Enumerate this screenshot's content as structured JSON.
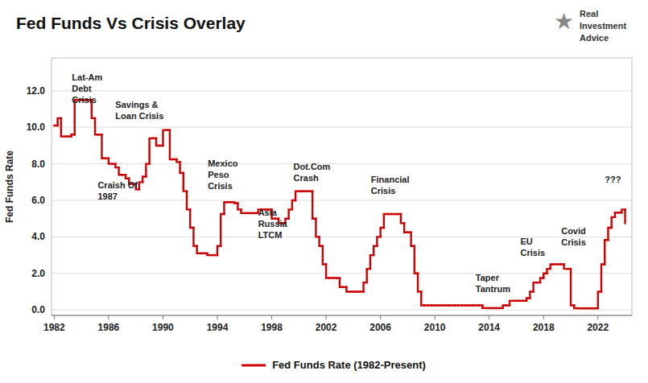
{
  "chart_data": {
    "type": "step",
    "title": "Fed Funds Vs Crisis Overlay",
    "ylabel": "Fed Funds Rate",
    "x": [
      1982.0,
      1982.25,
      1982.5,
      1982.75,
      1983.0,
      1983.25,
      1983.5,
      1983.75,
      1984.0,
      1984.25,
      1984.5,
      1984.75,
      1985.0,
      1985.25,
      1985.5,
      1985.75,
      1986.0,
      1986.25,
      1986.5,
      1986.75,
      1987.0,
      1987.25,
      1987.5,
      1987.75,
      1988.0,
      1988.25,
      1988.5,
      1988.75,
      1989.0,
      1989.25,
      1989.5,
      1989.75,
      1990.0,
      1990.25,
      1990.5,
      1990.75,
      1991.0,
      1991.25,
      1991.5,
      1991.75,
      1992.0,
      1992.25,
      1992.5,
      1992.75,
      1993.0,
      1993.25,
      1993.5,
      1993.75,
      1994.0,
      1994.25,
      1994.5,
      1994.75,
      1995.0,
      1995.25,
      1995.5,
      1995.75,
      1996.0,
      1996.25,
      1996.5,
      1996.75,
      1997.0,
      1997.25,
      1997.5,
      1997.75,
      1998.0,
      1998.25,
      1998.5,
      1998.75,
      1999.0,
      1999.25,
      1999.5,
      1999.75,
      2000.0,
      2000.25,
      2000.5,
      2000.75,
      2001.0,
      2001.25,
      2001.5,
      2001.75,
      2002.0,
      2002.25,
      2002.5,
      2002.75,
      2003.0,
      2003.25,
      2003.5,
      2003.75,
      2004.0,
      2004.25,
      2004.5,
      2004.75,
      2005.0,
      2005.25,
      2005.5,
      2005.75,
      2006.0,
      2006.25,
      2006.5,
      2006.75,
      2007.0,
      2007.25,
      2007.5,
      2007.75,
      2008.0,
      2008.25,
      2008.5,
      2008.75,
      2009.0,
      2009.25,
      2009.5,
      2009.75,
      2010.0,
      2010.25,
      2010.5,
      2010.75,
      2011.0,
      2011.25,
      2011.5,
      2011.75,
      2012.0,
      2012.25,
      2012.5,
      2012.75,
      2013.0,
      2013.25,
      2013.5,
      2013.75,
      2014.0,
      2014.25,
      2014.5,
      2014.75,
      2015.0,
      2015.25,
      2015.5,
      2015.75,
      2016.0,
      2016.25,
      2016.5,
      2016.75,
      2017.0,
      2017.25,
      2017.5,
      2017.75,
      2018.0,
      2018.25,
      2018.5,
      2018.75,
      2019.0,
      2019.25,
      2019.5,
      2019.75,
      2020.0,
      2020.25,
      2020.5,
      2020.75,
      2021.0,
      2021.25,
      2021.5,
      2021.75,
      2022.0,
      2022.25,
      2022.5,
      2022.75,
      2023.0,
      2023.25,
      2023.5,
      2023.75,
      2024.0
    ],
    "series": [
      {
        "name": "Fed Funds Rate (1982-Present)",
        "color": "#cc0000",
        "values": [
          10.1,
          10.5,
          9.5,
          9.5,
          9.5,
          9.6,
          11.5,
          11.5,
          11.5,
          11.5,
          11.5,
          10.5,
          9.6,
          9.6,
          8.3,
          8.3,
          8.0,
          8.0,
          7.8,
          7.4,
          7.4,
          7.2,
          6.9,
          6.9,
          6.6,
          7.0,
          7.3,
          8.0,
          9.4,
          9.4,
          9.0,
          9.0,
          9.85,
          9.85,
          8.25,
          8.25,
          8.1,
          7.5,
          6.5,
          5.5,
          4.5,
          3.5,
          3.1,
          3.1,
          3.1,
          3.0,
          3.0,
          3.0,
          3.5,
          5.25,
          5.9,
          5.9,
          5.9,
          5.85,
          5.5,
          5.3,
          5.3,
          5.3,
          5.3,
          5.3,
          5.5,
          5.5,
          5.5,
          5.5,
          5.0,
          5.0,
          4.75,
          4.75,
          5.0,
          5.5,
          6.0,
          6.5,
          6.5,
          6.5,
          6.5,
          6.5,
          5.0,
          4.0,
          3.5,
          2.5,
          1.75,
          1.75,
          1.75,
          1.75,
          1.25,
          1.25,
          1.0,
          1.0,
          1.0,
          1.0,
          1.0,
          1.5,
          2.25,
          3.0,
          3.5,
          4.0,
          4.5,
          5.25,
          5.25,
          5.25,
          5.25,
          5.25,
          4.75,
          4.25,
          4.25,
          3.5,
          2.0,
          1.0,
          0.25,
          0.25,
          0.25,
          0.25,
          0.25,
          0.25,
          0.25,
          0.25,
          0.25,
          0.25,
          0.25,
          0.25,
          0.25,
          0.25,
          0.25,
          0.25,
          0.25,
          0.25,
          0.1,
          0.1,
          0.1,
          0.1,
          0.1,
          0.1,
          0.25,
          0.25,
          0.5,
          0.5,
          0.5,
          0.5,
          0.5,
          0.65,
          1.0,
          1.5,
          1.5,
          1.75,
          2.0,
          2.25,
          2.5,
          2.5,
          2.5,
          2.5,
          2.25,
          2.25,
          0.25,
          0.09,
          0.09,
          0.09,
          0.09,
          0.09,
          0.09,
          0.09,
          1.0,
          2.5,
          3.83,
          4.5,
          5.08,
          5.33,
          5.33,
          5.5,
          4.75
        ]
      }
    ],
    "xlim": [
      1981.8,
      2024.5
    ],
    "ylim": [
      -0.3,
      13.8
    ],
    "xticks": [
      1982,
      1986,
      1990,
      1994,
      1998,
      2002,
      2006,
      2010,
      2014,
      2018,
      2022
    ],
    "yticks": [
      {
        "value": 0.0,
        "label": "0.0"
      },
      {
        "value": 2.0,
        "label": "2.0"
      },
      {
        "value": 4.0,
        "label": "4.0"
      },
      {
        "value": 6.0,
        "label": "6.0"
      },
      {
        "value": 8.0,
        "label": "8.0"
      },
      {
        "value": 10.0,
        "label": "10.0"
      },
      {
        "value": 12.0,
        "label": "12.0"
      }
    ],
    "grid": true,
    "legend": "bottom",
    "annotations": [
      {
        "text": "Lat-Am\nDebt\nCrisis",
        "x": 1983.3,
        "y": 13.0
      },
      {
        "text": "Savings &\nLoan Crisis",
        "x": 1986.5,
        "y": 11.5
      },
      {
        "text": "Craish Of\n1987",
        "x": 1985.2,
        "y": 7.1
      },
      {
        "text": "Mexico\nPeso\nCrisis",
        "x": 1993.3,
        "y": 8.3
      },
      {
        "text": "Asia\nRussia\nLTCM",
        "x": 1997.0,
        "y": 5.6
      },
      {
        "text": "Dot.Com\nCrash",
        "x": 1999.6,
        "y": 8.1
      },
      {
        "text": "Financial\nCrisis",
        "x": 2005.3,
        "y": 7.4
      },
      {
        "text": "Taper\nTantrum",
        "x": 2013.0,
        "y": 2.05
      },
      {
        "text": "EU\nCrisis",
        "x": 2016.3,
        "y": 4.0
      },
      {
        "text": "Covid\nCrisis",
        "x": 2019.3,
        "y": 4.6
      },
      {
        "text": "???",
        "x": 2022.5,
        "y": 7.4
      },
      {
        "text": "★"
      },
      {
        "text": "Real\nInvestment\nAdvice"
      }
    ]
  }
}
